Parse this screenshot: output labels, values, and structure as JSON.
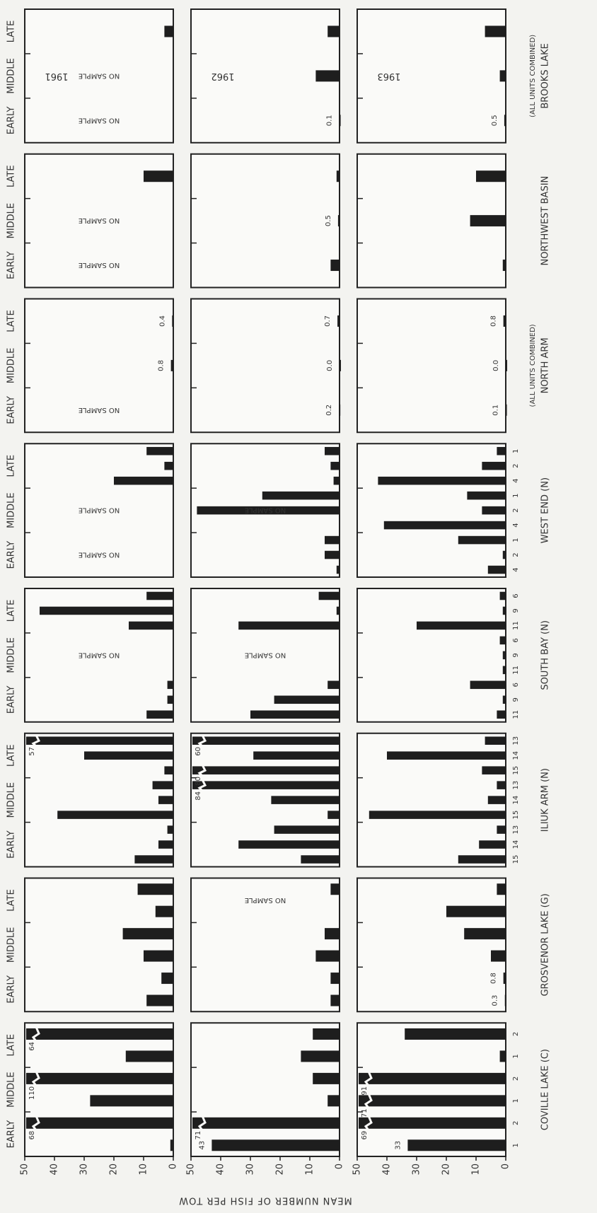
{
  "chart_data": {
    "type": "bar",
    "ylabel": "MEAN NUMBER OF FISH PER TOW",
    "ylim": [
      0,
      50
    ],
    "yticks": [
      0,
      10,
      20,
      30,
      40,
      50
    ],
    "periods": [
      "EARLY",
      "MIDDLE",
      "LATE"
    ],
    "years": [
      "1961",
      "1962",
      "1963"
    ],
    "color": "#1e1e1e",
    "lakes": [
      {
        "name": "COVILLE LAKE (C)",
        "unit_labels": [
          "1",
          "2",
          "1",
          "2",
          "1",
          "2"
        ],
        "panels": [
          {
            "values": [
              1,
              68,
              28,
              110,
              16,
              64
            ],
            "value_labels": [
              null,
              "68",
              null,
              "110",
              null,
              "64"
            ]
          },
          {
            "values": [
              43,
              71,
              4,
              9,
              13,
              9
            ],
            "value_labels": [
              "43",
              "71",
              null,
              null,
              null,
              null
            ]
          },
          {
            "values": [
              33,
              69,
              71,
              91,
              2,
              34
            ],
            "value_labels": [
              "33",
              "69",
              "71",
              "91",
              null,
              null
            ]
          }
        ]
      },
      {
        "name": "GROSVENOR LAKE (G)",
        "panels": [
          {
            "values": [
              9,
              4,
              10,
              17,
              6,
              12
            ]
          },
          {
            "values": [
              3,
              3,
              8,
              5,
              null,
              3
            ],
            "no_sample": [
              null,
              null,
              "NO SAMPLE"
            ]
          },
          {
            "values": [
              0.3,
              0.8,
              5,
              14,
              20,
              3
            ],
            "value_labels": [
              "0.3",
              "0.8",
              null,
              null,
              null,
              null
            ]
          }
        ]
      },
      {
        "name": "ILIUK ARM (N)",
        "unit_labels": [
          "15",
          "14",
          "13",
          "15",
          "14",
          "13",
          "15",
          "14",
          "13"
        ],
        "panels": [
          {
            "values": [
              13,
              5,
              2,
              39,
              5,
              7,
              3,
              30,
              57
            ],
            "value_labels": [
              null,
              null,
              null,
              null,
              null,
              null,
              null,
              null,
              "57"
            ]
          },
          {
            "values": [
              13,
              34,
              22,
              4,
              23,
              84,
              80,
              29,
              60
            ],
            "value_labels": [
              null,
              null,
              null,
              null,
              null,
              "84",
              "80",
              null,
              "60"
            ]
          },
          {
            "values": [
              16,
              9,
              3,
              46,
              6,
              3,
              8,
              40,
              7
            ]
          }
        ]
      },
      {
        "name": "SOUTH BAY (N)",
        "unit_labels": [
          "11",
          "9",
          "6",
          "11",
          "9",
          "6",
          "11",
          "9",
          "6"
        ],
        "panels": [
          {
            "values": [
              9,
              2,
              2,
              null,
              null,
              null,
              15,
              45,
              9
            ],
            "no_sample": [
              null,
              "NO SAMPLE",
              null
            ]
          },
          {
            "values": [
              30,
              22,
              4,
              null,
              null,
              null,
              34,
              1,
              7
            ],
            "no_sample": [
              null,
              "NO SAMPLE",
              null
            ]
          },
          {
            "values": [
              3,
              1,
              12,
              1,
              1,
              2,
              30,
              1,
              2
            ]
          }
        ]
      },
      {
        "name": "WEST END (N)",
        "unit_labels": [
          "4",
          "2",
          "1",
          "4",
          "2",
          "1",
          "4",
          "2",
          "1"
        ],
        "panels": [
          {
            "values": [
              null,
              null,
              null,
              null,
              null,
              null,
              20,
              3,
              9
            ],
            "no_sample": [
              "NO SAMPLE",
              "NO SAMPLE",
              null
            ]
          },
          {
            "values": [
              1,
              5,
              5,
              null,
              48,
              26,
              2,
              3,
              5
            ],
            "no_sample": [
              null,
              "NO SAMPLE",
              null
            ]
          },
          {
            "values": [
              6,
              1,
              16,
              41,
              8,
              13,
              43,
              8,
              3
            ]
          }
        ]
      },
      {
        "name": "NORTH ARM",
        "note": "(ALL UNITS COMBINED)",
        "panels": [
          {
            "values": [
              null,
              0.8,
              0.4
            ],
            "value_labels": [
              null,
              "0.8",
              "0.4"
            ],
            "no_sample": [
              "NO SAMPLE",
              null,
              null
            ]
          },
          {
            "values": [
              0.2,
              0,
              0.7
            ],
            "value_labels": [
              "0.2",
              "0.0",
              "0.7"
            ]
          },
          {
            "values": [
              0.1,
              0,
              0.8
            ],
            "value_labels": [
              "0.1",
              "0.0",
              "0.8"
            ]
          }
        ]
      },
      {
        "name": "NORTHWEST BASIN",
        "panels": [
          {
            "values": [
              null,
              null,
              10
            ],
            "no_sample": [
              "NO SAMPLE",
              "NO SAMPLE",
              null
            ]
          },
          {
            "values": [
              3,
              0.5,
              1
            ],
            "value_labels": [
              null,
              "0.5",
              null
            ]
          },
          {
            "values": [
              1,
              12,
              10
            ]
          }
        ]
      },
      {
        "name": "BROOKS LAKE",
        "note": "(ALL UNITS COMBINED)",
        "panels": [
          {
            "values": [
              null,
              null,
              3
            ],
            "no_sample": [
              "NO SAMPLE",
              "NO SAMPLE",
              null
            ]
          },
          {
            "values": [
              0.1,
              8,
              4
            ],
            "value_labels": [
              "0.1",
              null,
              null
            ]
          },
          {
            "values": [
              0.5,
              2,
              7
            ],
            "value_labels": [
              "0.5",
              null,
              null
            ]
          }
        ]
      }
    ]
  }
}
